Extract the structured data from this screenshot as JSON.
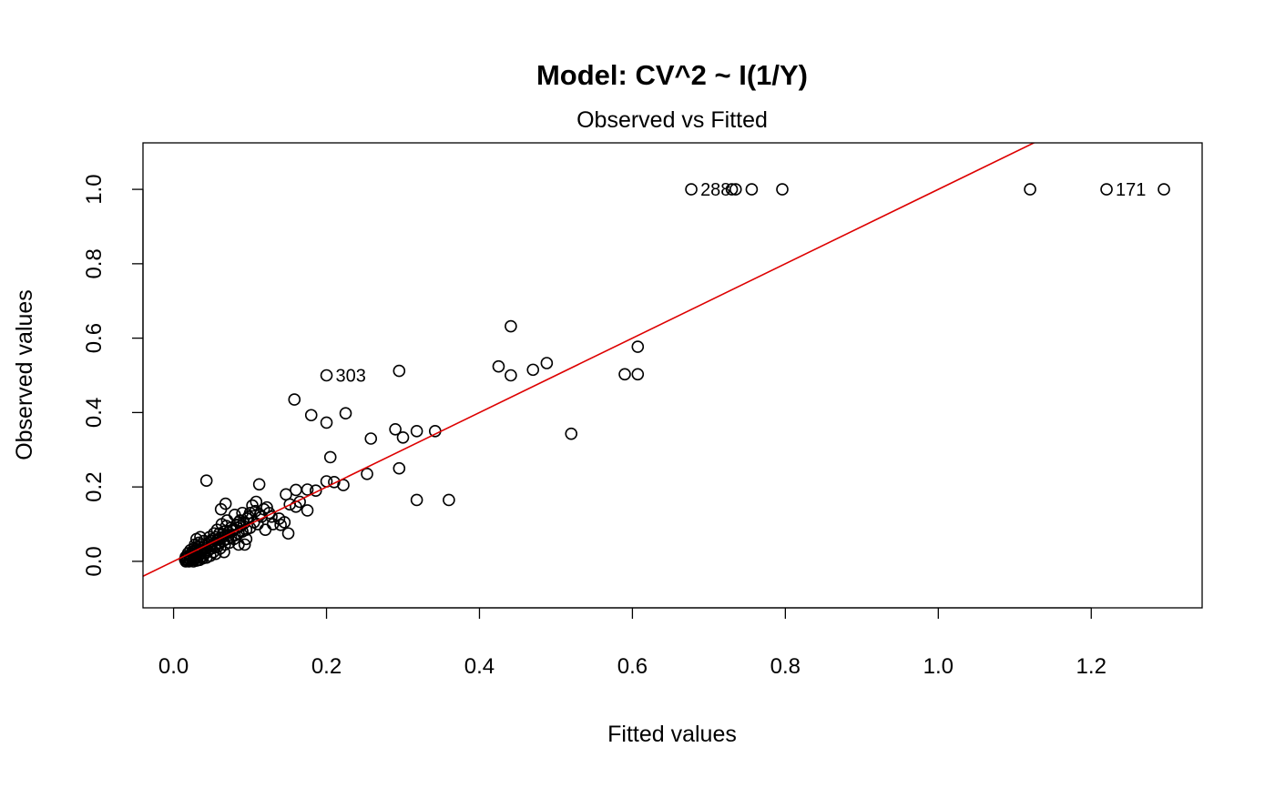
{
  "chart_data": {
    "type": "scatter",
    "title": "Model: CV^2 ~ I(1/Y)",
    "subtitle": "Observed vs Fitted",
    "xlabel": "Fitted values",
    "ylabel": "Observed values",
    "xlim": [
      -0.04,
      1.345
    ],
    "ylim": [
      -0.125,
      1.125
    ],
    "x_ticks": [
      {
        "value": 0.0,
        "label": "0.0"
      },
      {
        "value": 0.2,
        "label": "0.2"
      },
      {
        "value": 0.4,
        "label": "0.4"
      },
      {
        "value": 0.6,
        "label": "0.6"
      },
      {
        "value": 0.8,
        "label": "0.8"
      },
      {
        "value": 1.0,
        "label": "1.0"
      },
      {
        "value": 1.2,
        "label": "1.2"
      }
    ],
    "y_ticks": [
      {
        "value": 0.0,
        "label": "0.0"
      },
      {
        "value": 0.2,
        "label": "0.2"
      },
      {
        "value": 0.4,
        "label": "0.4"
      },
      {
        "value": 0.6,
        "label": "0.6"
      },
      {
        "value": 0.8,
        "label": "0.8"
      },
      {
        "value": 1.0,
        "label": "1.0"
      }
    ],
    "grid": false,
    "reference_line": {
      "intercept": 0,
      "slope": 1,
      "color": "#dd0000"
    },
    "point_color": "#000000",
    "points": [
      [
        0.677,
        1.0
      ],
      [
        0.73,
        1.0
      ],
      [
        0.735,
        1.0
      ],
      [
        0.756,
        1.0
      ],
      [
        0.796,
        1.0
      ],
      [
        1.12,
        1.0
      ],
      [
        1.22,
        1.0
      ],
      [
        1.295,
        1.0
      ],
      [
        0.441,
        0.632
      ],
      [
        0.607,
        0.577
      ],
      [
        0.488,
        0.533
      ],
      [
        0.425,
        0.524
      ],
      [
        0.47,
        0.515
      ],
      [
        0.295,
        0.512
      ],
      [
        0.441,
        0.5
      ],
      [
        0.59,
        0.503
      ],
      [
        0.607,
        0.503
      ],
      [
        0.2,
        0.5
      ],
      [
        0.158,
        0.435
      ],
      [
        0.225,
        0.398
      ],
      [
        0.18,
        0.393
      ],
      [
        0.2,
        0.373
      ],
      [
        0.29,
        0.355
      ],
      [
        0.318,
        0.35
      ],
      [
        0.342,
        0.35
      ],
      [
        0.52,
        0.343
      ],
      [
        0.3,
        0.333
      ],
      [
        0.258,
        0.33
      ],
      [
        0.205,
        0.28
      ],
      [
        0.295,
        0.25
      ],
      [
        0.253,
        0.235
      ],
      [
        0.2,
        0.215
      ],
      [
        0.21,
        0.213
      ],
      [
        0.222,
        0.205
      ],
      [
        0.318,
        0.165
      ],
      [
        0.36,
        0.165
      ],
      [
        0.043,
        0.217
      ],
      [
        0.112,
        0.207
      ],
      [
        0.186,
        0.19
      ],
      [
        0.175,
        0.193
      ],
      [
        0.16,
        0.192
      ],
      [
        0.147,
        0.18
      ],
      [
        0.165,
        0.16
      ],
      [
        0.152,
        0.153
      ],
      [
        0.16,
        0.147
      ],
      [
        0.175,
        0.137
      ],
      [
        0.15,
        0.075
      ],
      [
        0.145,
        0.105
      ],
      [
        0.13,
        0.1
      ],
      [
        0.118,
        0.14
      ],
      [
        0.108,
        0.16
      ],
      [
        0.103,
        0.15
      ],
      [
        0.12,
        0.085
      ],
      [
        0.1,
        0.13
      ],
      [
        0.096,
        0.115
      ],
      [
        0.09,
        0.13
      ],
      [
        0.085,
        0.105
      ],
      [
        0.095,
        0.06
      ],
      [
        0.085,
        0.045
      ],
      [
        0.093,
        0.045
      ],
      [
        0.068,
        0.155
      ],
      [
        0.062,
        0.14
      ],
      [
        0.08,
        0.125
      ],
      [
        0.07,
        0.11
      ],
      [
        0.075,
        0.09
      ],
      [
        0.066,
        0.08
      ],
      [
        0.06,
        0.075
      ],
      [
        0.058,
        0.06
      ],
      [
        0.066,
        0.025
      ],
      [
        0.055,
        0.02
      ],
      [
        0.045,
        0.045
      ],
      [
        0.05,
        0.055
      ],
      [
        0.04,
        0.055
      ],
      [
        0.035,
        0.065
      ],
      [
        0.03,
        0.06
      ],
      [
        0.042,
        0.035
      ],
      [
        0.038,
        0.03
      ],
      [
        0.032,
        0.04
      ],
      [
        0.028,
        0.045
      ],
      [
        0.03,
        0.028
      ],
      [
        0.025,
        0.02
      ],
      [
        0.022,
        0.03
      ],
      [
        0.02,
        0.015
      ],
      [
        0.018,
        0.01
      ],
      [
        0.015,
        0.005
      ],
      [
        0.016,
        0.0
      ],
      [
        0.02,
        0.0
      ],
      [
        0.025,
        0.005
      ],
      [
        0.028,
        0.01
      ],
      [
        0.032,
        0.012
      ],
      [
        0.036,
        0.02
      ],
      [
        0.04,
        0.022
      ],
      [
        0.045,
        0.03
      ],
      [
        0.05,
        0.035
      ],
      [
        0.055,
        0.045
      ],
      [
        0.06,
        0.05
      ],
      [
        0.065,
        0.055
      ],
      [
        0.07,
        0.06
      ],
      [
        0.075,
        0.065
      ],
      [
        0.08,
        0.07
      ],
      [
        0.085,
        0.075
      ],
      [
        0.09,
        0.08
      ],
      [
        0.095,
        0.085
      ],
      [
        0.1,
        0.09
      ],
      [
        0.11,
        0.1
      ],
      [
        0.115,
        0.12
      ],
      [
        0.105,
        0.105
      ],
      [
        0.088,
        0.095
      ],
      [
        0.078,
        0.085
      ],
      [
        0.072,
        0.07
      ],
      [
        0.064,
        0.065
      ],
      [
        0.058,
        0.04
      ],
      [
        0.052,
        0.025
      ],
      [
        0.048,
        0.015
      ],
      [
        0.043,
        0.01
      ],
      [
        0.038,
        0.008
      ],
      [
        0.034,
        0.004
      ],
      [
        0.03,
        0.002
      ],
      [
        0.026,
        0.0
      ],
      [
        0.023,
        0.012
      ],
      [
        0.019,
        0.022
      ],
      [
        0.017,
        0.006
      ],
      [
        0.021,
        0.006
      ],
      [
        0.024,
        0.025
      ],
      [
        0.027,
        0.035
      ],
      [
        0.033,
        0.05
      ],
      [
        0.037,
        0.045
      ],
      [
        0.041,
        0.04
      ],
      [
        0.046,
        0.05
      ],
      [
        0.051,
        0.06
      ],
      [
        0.056,
        0.065
      ],
      [
        0.061,
        0.035
      ],
      [
        0.067,
        0.045
      ],
      [
        0.073,
        0.05
      ],
      [
        0.079,
        0.06
      ],
      [
        0.083,
        0.09
      ],
      [
        0.069,
        0.095
      ],
      [
        0.063,
        0.1
      ],
      [
        0.057,
        0.085
      ],
      [
        0.053,
        0.075
      ],
      [
        0.047,
        0.065
      ],
      [
        0.044,
        0.025
      ],
      [
        0.039,
        0.015
      ],
      [
        0.035,
        0.01
      ],
      [
        0.031,
        0.018
      ],
      [
        0.027,
        0.005
      ],
      [
        0.022,
        0.003
      ],
      [
        0.018,
        0.002
      ],
      [
        0.016,
        0.012
      ],
      [
        0.029,
        0.032
      ],
      [
        0.034,
        0.028
      ],
      [
        0.049,
        0.042
      ],
      [
        0.054,
        0.038
      ],
      [
        0.059,
        0.058
      ],
      [
        0.064,
        0.072
      ],
      [
        0.071,
        0.078
      ],
      [
        0.077,
        0.082
      ],
      [
        0.082,
        0.098
      ],
      [
        0.087,
        0.11
      ],
      [
        0.092,
        0.102
      ],
      [
        0.098,
        0.12
      ],
      [
        0.107,
        0.135
      ],
      [
        0.113,
        0.125
      ],
      [
        0.125,
        0.13
      ],
      [
        0.122,
        0.145
      ],
      [
        0.138,
        0.115
      ],
      [
        0.14,
        0.098
      ],
      [
        0.128,
        0.12
      ]
    ],
    "point_labels": [
      {
        "x": 0.677,
        "y": 1.0,
        "text": "288"
      },
      {
        "x": 1.22,
        "y": 1.0,
        "text": "171"
      },
      {
        "x": 0.2,
        "y": 0.5,
        "text": "303"
      }
    ]
  }
}
